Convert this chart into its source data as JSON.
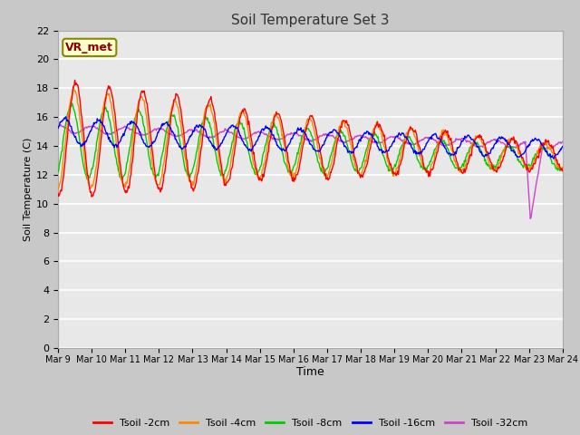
{
  "title": "Soil Temperature Set 3",
  "xlabel": "Time",
  "ylabel": "Soil Temperature (C)",
  "ylim": [
    0,
    22
  ],
  "yticks": [
    0,
    2,
    4,
    6,
    8,
    10,
    12,
    14,
    16,
    18,
    20,
    22
  ],
  "legend_label": "VR_met",
  "series_labels": [
    "Tsoil -2cm",
    "Tsoil -4cm",
    "Tsoil -8cm",
    "Tsoil -16cm",
    "Tsoil -32cm"
  ],
  "series_colors": [
    "#ff0000",
    "#ff8800",
    "#00cc00",
    "#0000ff",
    "#cc44cc"
  ],
  "fig_bg": "#c8c8c8",
  "plot_bg": "#e8e8e8",
  "n_points": 720,
  "start_day": 9,
  "end_day": 24
}
